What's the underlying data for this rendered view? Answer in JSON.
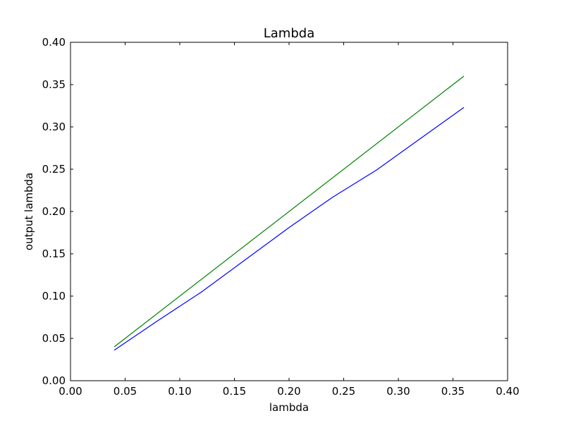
{
  "chart_data": {
    "type": "line",
    "title": "Lambda",
    "xlabel": "lambda",
    "ylabel": "output lambda",
    "xlim": [
      0.0,
      0.4
    ],
    "ylim": [
      0.0,
      0.4
    ],
    "xticks": [
      0.0,
      0.05,
      0.1,
      0.15,
      0.2,
      0.25,
      0.3,
      0.35,
      0.4
    ],
    "xtick_labels": [
      "0.00",
      "0.05",
      "0.10",
      "0.15",
      "0.20",
      "0.25",
      "0.30",
      "0.35",
      "0.40"
    ],
    "yticks": [
      0.0,
      0.05,
      0.1,
      0.15,
      0.2,
      0.25,
      0.3,
      0.35,
      0.4
    ],
    "ytick_labels": [
      "0.00",
      "0.05",
      "0.10",
      "0.15",
      "0.20",
      "0.25",
      "0.30",
      "0.35",
      "0.40"
    ],
    "grid": false,
    "legend": "none",
    "series": [
      {
        "color": "#0000ff",
        "x": [
          0.04,
          0.08,
          0.12,
          0.16,
          0.2,
          0.24,
          0.28,
          0.32,
          0.36
        ],
        "y": [
          0.036,
          0.071,
          0.105,
          0.143,
          0.181,
          0.217,
          0.249,
          0.286,
          0.323
        ]
      },
      {
        "color": "#008000",
        "x": [
          0.04,
          0.36
        ],
        "y": [
          0.04,
          0.36
        ]
      }
    ]
  }
}
